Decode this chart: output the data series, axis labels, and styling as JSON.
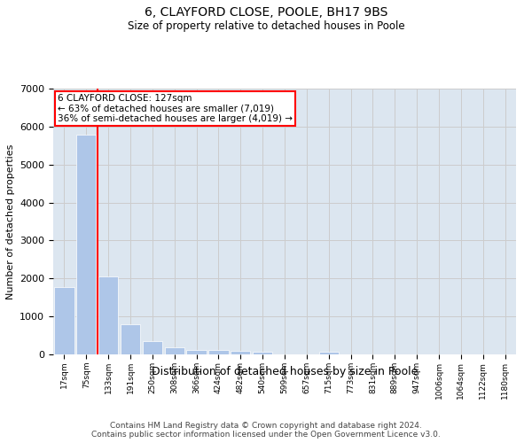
{
  "title": "6, CLAYFORD CLOSE, POOLE, BH17 9BS",
  "subtitle": "Size of property relative to detached houses in Poole",
  "xlabel": "Distribution of detached houses by size in Poole",
  "ylabel": "Number of detached properties",
  "categories": [
    "17sqm",
    "75sqm",
    "133sqm",
    "191sqm",
    "250sqm",
    "308sqm",
    "366sqm",
    "424sqm",
    "482sqm",
    "540sqm",
    "599sqm",
    "657sqm",
    "715sqm",
    "773sqm",
    "831sqm",
    "889sqm",
    "947sqm",
    "1006sqm",
    "1064sqm",
    "1122sqm",
    "1180sqm"
  ],
  "values": [
    1780,
    5780,
    2060,
    800,
    340,
    190,
    120,
    110,
    95,
    80,
    0,
    0,
    80,
    0,
    0,
    0,
    0,
    0,
    0,
    0,
    0
  ],
  "bar_color": "#aec6e8",
  "grid_color": "#cccccc",
  "background_color": "#dce6f0",
  "property_line_x": 1.5,
  "property_label": "6 CLAYFORD CLOSE: 127sqm",
  "annotation_line1": "← 63% of detached houses are smaller (7,019)",
  "annotation_line2": "36% of semi-detached houses are larger (4,019) →",
  "annotation_box_color": "red",
  "ylim": [
    0,
    7000
  ],
  "yticks": [
    0,
    1000,
    2000,
    3000,
    4000,
    5000,
    6000,
    7000
  ],
  "footer_line1": "Contains HM Land Registry data © Crown copyright and database right 2024.",
  "footer_line2": "Contains public sector information licensed under the Open Government Licence v3.0."
}
